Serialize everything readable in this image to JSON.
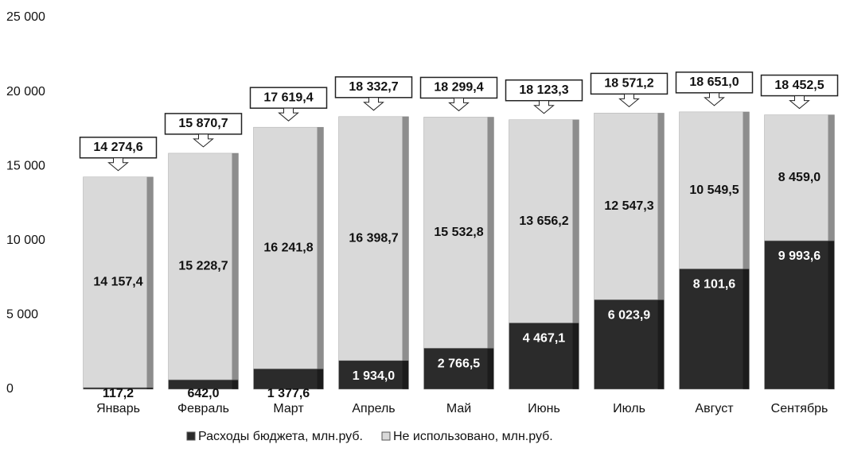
{
  "chart_data": {
    "type": "stacked_bar",
    "categories": [
      "Январь",
      "Февраль",
      "Март",
      "Апрель",
      "Май",
      "Июнь",
      "Июль",
      "Август",
      "Сентябрь"
    ],
    "series": [
      {
        "name": "Расходы бюджета, млн.руб.",
        "color": "#2b2b2b",
        "values": [
          117.2,
          642.0,
          1377.6,
          1934.0,
          2766.5,
          4467.1,
          6023.9,
          8101.6,
          9993.6
        ],
        "value_labels": [
          "117,2",
          "642,0",
          "1 377,6",
          "1 934,0",
          "2 766,5",
          "4 467,1",
          "6 023,9",
          "8 101,6",
          "9 993,6"
        ]
      },
      {
        "name": "Не использовано, млн.руб.",
        "color": "#d9d9d9",
        "values": [
          14157.4,
          15228.7,
          16241.8,
          16398.7,
          15532.8,
          13656.2,
          12547.3,
          10549.5,
          8459.0
        ],
        "value_labels": [
          "14 157,4",
          "15 228,7",
          "16 241,8",
          "16 398,7",
          "15 532,8",
          "13 656,2",
          "12 547,3",
          "10 549,5",
          "8 459,0"
        ]
      }
    ],
    "totals": [
      14274.6,
      15870.7,
      17619.4,
      18332.7,
      18299.4,
      18123.3,
      18571.2,
      18651.0,
      18452.5
    ],
    "total_labels": [
      "14 274,6",
      "15 870,7",
      "17 619,4",
      "18 332,7",
      "18 299,4",
      "18 123,3",
      "18 571,2",
      "18 651,0",
      "18 452,5"
    ],
    "ylim": [
      0,
      25000
    ],
    "yticks": [
      0,
      {
        "value": 5000,
        "label": "5 000"
      },
      {
        "value": 10000,
        "label": "10 000"
      },
      {
        "value": 15000,
        "label": "15 000"
      },
      {
        "value": 20000,
        "label": "20 000"
      },
      {
        "value": 25000,
        "label": "25 000"
      }
    ],
    "legend": "bottom"
  }
}
